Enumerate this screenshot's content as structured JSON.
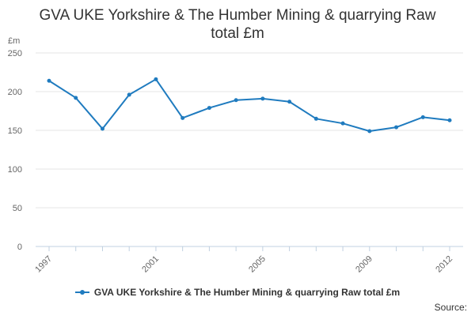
{
  "chart_data": {
    "type": "line",
    "title": "GVA UKE Yorkshire & The Humber Mining & quarrying Raw total £m",
    "ylabel": "£m",
    "xlabel": "",
    "ylim": [
      0,
      250
    ],
    "yticks": [
      0,
      50,
      100,
      150,
      200,
      250
    ],
    "xticks": [
      "1997",
      "2001",
      "2005",
      "2009",
      "2012"
    ],
    "grid": true,
    "legend_position": "bottom",
    "x": [
      1997,
      1998,
      1999,
      2000,
      2001,
      2002,
      2003,
      2004,
      2005,
      2006,
      2007,
      2008,
      2009,
      2010,
      2011,
      2012
    ],
    "series": [
      {
        "name": "GVA UKE Yorkshire & The Humber Mining & quarrying Raw total £m",
        "color": "#1f7bbf",
        "values": [
          214,
          192,
          152,
          196,
          216,
          166,
          179,
          189,
          191,
          187,
          165,
          159,
          149,
          154,
          167,
          163
        ]
      }
    ]
  },
  "footer": {
    "source": "Source:"
  }
}
